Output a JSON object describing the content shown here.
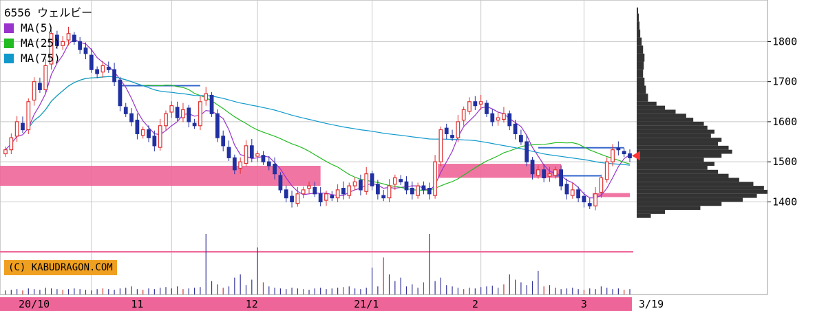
{
  "stock": {
    "code": "6556",
    "name": "ウェルビー"
  },
  "legend": [
    {
      "label": "MA(5)",
      "color": "#9933cc"
    },
    {
      "label": "MA(25)",
      "color": "#22bb22"
    },
    {
      "label": "MA(75)",
      "color": "#1199cc"
    }
  ],
  "credit": "(C) KABUDRAGON.COM",
  "last_date_label": "3/19",
  "chart_data": {
    "type": "candlestick",
    "y_axis": {
      "ticks": [
        1400,
        1500,
        1600,
        1700,
        1800
      ],
      "min": 1320,
      "max": 1890
    },
    "x_axis": {
      "labels": [
        {
          "text": "20/10",
          "index": 5
        },
        {
          "text": "11",
          "index": 23
        },
        {
          "text": "12",
          "index": 43
        },
        {
          "text": "21/1",
          "index": 63
        },
        {
          "text": "2",
          "index": 82
        },
        {
          "text": "3",
          "index": 101
        }
      ],
      "gridlines": [
        15,
        29,
        44,
        64,
        83,
        101
      ]
    },
    "closes": [
      1530,
      1560,
      1600,
      1580,
      1650,
      1700,
      1680,
      1740,
      1820,
      1790,
      1800,
      1820,
      1800,
      1780,
      1770,
      1730,
      1720,
      1740,
      1730,
      1700,
      1640,
      1620,
      1600,
      1570,
      1580,
      1560,
      1540,
      1590,
      1620,
      1640,
      1610,
      1630,
      1600,
      1590,
      1650,
      1670,
      1620,
      1560,
      1540,
      1510,
      1480,
      1500,
      1540,
      1510,
      1520,
      1500,
      1490,
      1470,
      1430,
      1410,
      1400,
      1420,
      1430,
      1440,
      1420,
      1400,
      1420,
      1410,
      1430,
      1420,
      1440,
      1450,
      1430,
      1470,
      1440,
      1420,
      1410,
      1440,
      1460,
      1450,
      1430,
      1420,
      1440,
      1430,
      1420,
      1500,
      1580,
      1570,
      1560,
      1600,
      1630,
      1650,
      1640,
      1650,
      1620,
      1600,
      1610,
      1620,
      1590,
      1570,
      1550,
      1500,
      1470,
      1480,
      1460,
      1470,
      1480,
      1440,
      1420,
      1430,
      1410,
      1400,
      1390,
      1420,
      1460,
      1500,
      1530,
      1530,
      1520,
      1510
    ],
    "volume": [
      6,
      7,
      8,
      6,
      9,
      8,
      7,
      10,
      9,
      8,
      7,
      8,
      9,
      8,
      7,
      6,
      8,
      9,
      8,
      7,
      9,
      10,
      12,
      8,
      7,
      9,
      8,
      10,
      11,
      9,
      12,
      8,
      9,
      10,
      11,
      90,
      20,
      15,
      10,
      12,
      25,
      30,
      14,
      22,
      70,
      18,
      12,
      10,
      9,
      8,
      10,
      9,
      8,
      7,
      9,
      10,
      8,
      9,
      10,
      11,
      12,
      9,
      8,
      10,
      40,
      12,
      55,
      30,
      20,
      25,
      12,
      15,
      10,
      18,
      90,
      20,
      25,
      14,
      12,
      10,
      8,
      10,
      9,
      11,
      12,
      13,
      10,
      15,
      30,
      22,
      18,
      14,
      20,
      35,
      12,
      14,
      10,
      8,
      9,
      10,
      8,
      7,
      9,
      8,
      12,
      10,
      8,
      9,
      7,
      8
    ],
    "zones": [
      {
        "from_index": 0,
        "to_index": 55,
        "low": 1440,
        "high": 1490,
        "color": "#ee6699"
      },
      {
        "from_index": 76,
        "to_index": 97,
        "low": 1460,
        "high": 1495,
        "color": "#ee6699"
      },
      {
        "from_index": 103,
        "to_index": 109,
        "low": 1412,
        "high": 1422,
        "color": "#ee6699"
      }
    ],
    "ref_lines": [
      {
        "from_index": 20,
        "to_index": 34,
        "value": 1690,
        "color": "#3366cc"
      },
      {
        "from_index": 93,
        "to_index": 108,
        "value": 1535,
        "color": "#3366cc"
      },
      {
        "from_index": 96,
        "to_index": 104,
        "value": 1465,
        "color": "#3366cc"
      }
    ],
    "profile": [
      [
        1885,
        2
      ],
      [
        1870,
        3
      ],
      [
        1850,
        4
      ],
      [
        1830,
        5
      ],
      [
        1810,
        7
      ],
      [
        1790,
        9
      ],
      [
        1770,
        11
      ],
      [
        1750,
        10
      ],
      [
        1730,
        9
      ],
      [
        1710,
        11
      ],
      [
        1690,
        13
      ],
      [
        1670,
        16
      ],
      [
        1650,
        28
      ],
      [
        1640,
        40
      ],
      [
        1630,
        55
      ],
      [
        1620,
        70
      ],
      [
        1610,
        80
      ],
      [
        1600,
        95
      ],
      [
        1590,
        100
      ],
      [
        1580,
        110
      ],
      [
        1570,
        105
      ],
      [
        1560,
        120
      ],
      [
        1550,
        115
      ],
      [
        1540,
        130
      ],
      [
        1530,
        135
      ],
      [
        1520,
        120
      ],
      [
        1510,
        95
      ],
      [
        1500,
        110
      ],
      [
        1490,
        100
      ],
      [
        1480,
        115
      ],
      [
        1470,
        130
      ],
      [
        1460,
        145
      ],
      [
        1450,
        165
      ],
      [
        1440,
        180
      ],
      [
        1430,
        185
      ],
      [
        1420,
        170
      ],
      [
        1410,
        150
      ],
      [
        1400,
        120
      ],
      [
        1390,
        90
      ],
      [
        1380,
        40
      ],
      [
        1370,
        20
      ]
    ],
    "last_price": 1515
  }
}
